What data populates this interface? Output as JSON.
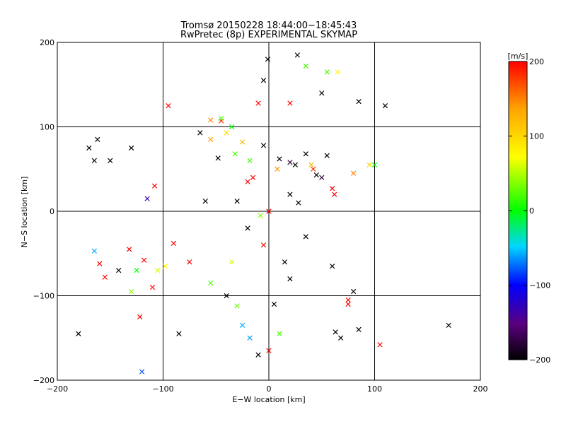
{
  "chart_data": {
    "type": "scatter",
    "title": "Tromsø 20150228 18:44:00−18:45:43",
    "subtitle": "RwPretec (8p) EXPERIMENTAL SKYMAP",
    "xlabel": "E−W location [km]",
    "ylabel": "N−S location [km]",
    "xlim": [
      -200,
      200
    ],
    "ylim": [
      -200,
      200
    ],
    "x_ticks": [
      -200,
      -100,
      0,
      100,
      200
    ],
    "y_ticks": [
      -200,
      -100,
      0,
      100,
      200
    ],
    "x_tick_labels": [
      "−200",
      "−100",
      "0",
      "100",
      "200"
    ],
    "y_tick_labels": [
      "−200",
      "−100",
      "0",
      "100",
      "200"
    ],
    "grid": true,
    "colorbar": {
      "label": "[m/s]",
      "range": [
        -200,
        200
      ],
      "ticks": [
        200,
        100,
        0,
        -100,
        -200
      ],
      "tick_labels": [
        "200",
        "100",
        "0",
        "−100",
        "−200"
      ],
      "colors": [
        "#000000",
        "#5a007f",
        "#0000ff",
        "#00d6ff",
        "#00ff00",
        "#ffff00",
        "#ffa500",
        "#ff0000"
      ]
    },
    "series": [
      {
        "marker": "x",
        "points": [
          [
            27,
            185,
            -200
          ],
          [
            -65,
            93,
            -200
          ],
          [
            -55,
            108,
            150
          ],
          [
            -45,
            107,
            180
          ],
          [
            -25,
            82,
            120
          ],
          [
            -48,
            63,
            -200
          ],
          [
            -5,
            78,
            -200
          ],
          [
            10,
            62,
            -200
          ],
          [
            20,
            58,
            -180
          ],
          [
            25,
            55,
            -200
          ],
          [
            35,
            68,
            -200
          ],
          [
            55,
            66,
            -200
          ],
          [
            45,
            43,
            -200
          ],
          [
            60,
            27,
            200
          ],
          [
            -115,
            15,
            -130
          ],
          [
            -130,
            75,
            -200
          ],
          [
            -150,
            60,
            -200
          ],
          [
            -162,
            85,
            -200
          ],
          [
            62,
            20,
            200
          ],
          [
            20,
            20,
            -200
          ],
          [
            28,
            10,
            -200
          ],
          [
            -108,
            30,
            200
          ],
          [
            -60,
            12,
            -200
          ],
          [
            -20,
            -20,
            -200
          ],
          [
            -18,
            60,
            20
          ],
          [
            -165,
            -47,
            -60
          ],
          [
            -142,
            -70,
            -200
          ],
          [
            -132,
            -45,
            200
          ],
          [
            -118,
            -58,
            200
          ],
          [
            -105,
            -70,
            60
          ],
          [
            -90,
            -38,
            200
          ],
          [
            -75,
            -60,
            200
          ],
          [
            -55,
            -85,
            20
          ],
          [
            -40,
            -100,
            -200
          ],
          [
            -30,
            -112,
            30
          ],
          [
            -25,
            -135,
            -60
          ],
          [
            -18,
            -150,
            -60
          ],
          [
            -10,
            -170,
            -200
          ],
          [
            0,
            -165,
            200
          ],
          [
            10,
            -145,
            20
          ],
          [
            5,
            -110,
            -200
          ],
          [
            20,
            -80,
            -200
          ],
          [
            15,
            -60,
            -200
          ],
          [
            35,
            -30,
            -200
          ],
          [
            60,
            -65,
            -200
          ],
          [
            80,
            -95,
            -200
          ],
          [
            75,
            -110,
            200
          ],
          [
            63,
            -143,
            -200
          ],
          [
            -85,
            -145,
            -200
          ],
          [
            -120,
            -190,
            -80
          ],
          [
            -122,
            -125,
            200
          ],
          [
            -180,
            -145,
            -200
          ],
          [
            -155,
            -78,
            200
          ],
          [
            -125,
            -70,
            0
          ],
          [
            -98,
            -65,
            80
          ],
          [
            -110,
            -90,
            200
          ],
          [
            -130,
            -95,
            40
          ],
          [
            -160,
            -62,
            200
          ],
          [
            -35,
            -60,
            60
          ],
          [
            -5,
            -40,
            200
          ],
          [
            -8,
            -5,
            40
          ],
          [
            0,
            0,
            200
          ],
          [
            -30,
            12,
            -200
          ],
          [
            -15,
            40,
            200
          ],
          [
            8,
            50,
            140
          ],
          [
            40,
            55,
            120
          ],
          [
            -165,
            60,
            -200
          ],
          [
            -10,
            128,
            200
          ],
          [
            -5,
            155,
            -200
          ],
          [
            20,
            128,
            200
          ],
          [
            -95,
            125,
            200
          ],
          [
            -45,
            110,
            20
          ],
          [
            -35,
            100,
            0
          ],
          [
            -40,
            93,
            100
          ],
          [
            -55,
            85,
            140
          ],
          [
            -32,
            68,
            20
          ],
          [
            -20,
            35,
            200
          ],
          [
            -1,
            180,
            -200
          ],
          [
            35,
            172,
            20
          ],
          [
            50,
            140,
            -200
          ],
          [
            55,
            165,
            20
          ],
          [
            85,
            130,
            -200
          ],
          [
            65,
            165,
            80
          ],
          [
            95,
            55,
            100
          ],
          [
            100,
            55,
            0
          ],
          [
            105,
            -158,
            200
          ],
          [
            85,
            -140,
            -200
          ],
          [
            170,
            -135,
            -200
          ],
          [
            -170,
            75,
            -200
          ],
          [
            110,
            125,
            -200
          ],
          [
            75,
            -105,
            200
          ],
          [
            68,
            -150,
            -200
          ],
          [
            50,
            40,
            -180
          ],
          [
            42,
            50,
            180
          ],
          [
            80,
            45,
            150
          ]
        ]
      }
    ]
  }
}
